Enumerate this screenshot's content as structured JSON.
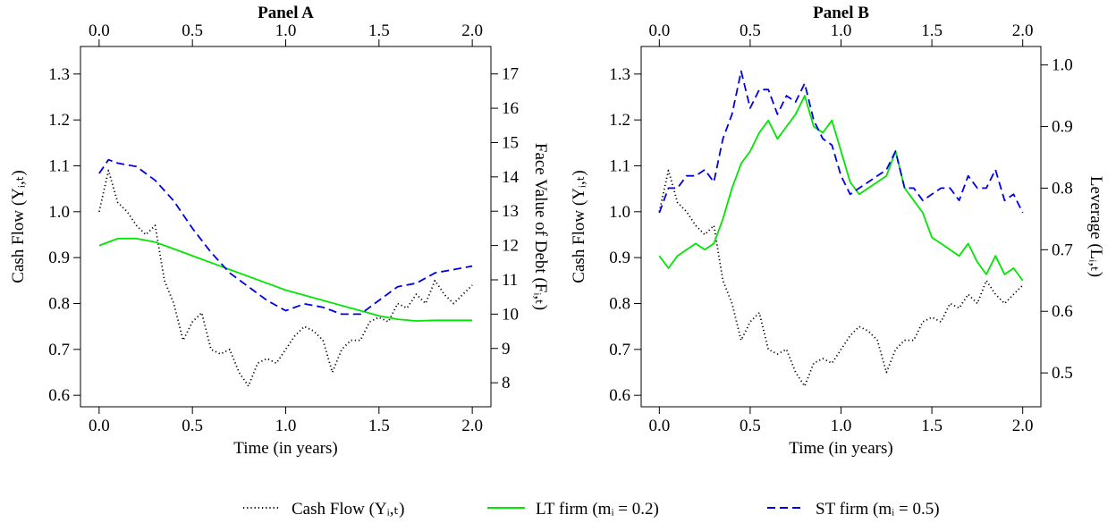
{
  "chart_data": [
    {
      "type": "line",
      "title": "Panel A",
      "xlabel": "Time (in years)",
      "ylabel_left": "Cash Flow (Yᵢ,ₜ)",
      "ylabel_right": "Face Value of Debt (Fᵢ,ₜ)",
      "xlim": [
        0,
        2
      ],
      "ylim_left": [
        0.6,
        1.3
      ],
      "ylim_right": [
        8,
        17
      ],
      "x_ticks": [
        "0.0",
        "0.5",
        "1.0",
        "1.5",
        "2.0"
      ],
      "y_left_ticks": [
        "0.6",
        "0.7",
        "0.8",
        "0.9",
        "1.0",
        "1.1",
        "1.2",
        "1.3"
      ],
      "y_right_ticks": [
        "8",
        "9",
        "10",
        "11",
        "12",
        "13",
        "14",
        "15",
        "16",
        "17"
      ],
      "series": [
        {
          "name": "Cash Flow (Yᵢ,ₜ)",
          "axis": "left",
          "color": "#000000",
          "style": "dotted",
          "x": [
            0,
            0.05,
            0.1,
            0.15,
            0.2,
            0.25,
            0.3,
            0.35,
            0.4,
            0.45,
            0.5,
            0.55,
            0.6,
            0.65,
            0.7,
            0.75,
            0.8,
            0.85,
            0.9,
            0.95,
            1.0,
            1.05,
            1.1,
            1.15,
            1.2,
            1.25,
            1.3,
            1.35,
            1.4,
            1.45,
            1.5,
            1.55,
            1.6,
            1.65,
            1.7,
            1.75,
            1.8,
            1.85,
            1.9,
            1.95,
            2.0
          ],
          "y": [
            1.0,
            1.09,
            1.02,
            1.0,
            0.97,
            0.95,
            0.97,
            0.85,
            0.8,
            0.72,
            0.76,
            0.78,
            0.7,
            0.69,
            0.7,
            0.65,
            0.62,
            0.67,
            0.68,
            0.67,
            0.7,
            0.73,
            0.75,
            0.74,
            0.72,
            0.65,
            0.7,
            0.72,
            0.72,
            0.76,
            0.77,
            0.76,
            0.8,
            0.79,
            0.82,
            0.8,
            0.85,
            0.82,
            0.8,
            0.82,
            0.84
          ]
        },
        {
          "name": "LT firm (mᵢ = 0.2)",
          "axis": "right",
          "color": "#00e600",
          "style": "solid",
          "x": [
            0,
            0.1,
            0.2,
            0.3,
            0.4,
            0.5,
            0.6,
            0.7,
            0.8,
            0.9,
            1.0,
            1.1,
            1.2,
            1.3,
            1.4,
            1.5,
            1.6,
            1.7,
            1.8,
            1.9,
            2.0
          ],
          "y": [
            12.0,
            12.2,
            12.2,
            12.1,
            11.9,
            11.7,
            11.5,
            11.3,
            11.1,
            10.9,
            10.7,
            10.55,
            10.4,
            10.25,
            10.1,
            9.95,
            9.85,
            9.8,
            9.82,
            9.82,
            9.82
          ]
        },
        {
          "name": "ST firm (mᵢ = 0.5)",
          "axis": "right",
          "color": "#0000e6",
          "style": "dashed",
          "x": [
            0,
            0.05,
            0.1,
            0.2,
            0.3,
            0.4,
            0.5,
            0.6,
            0.7,
            0.8,
            0.9,
            1.0,
            1.1,
            1.2,
            1.3,
            1.4,
            1.5,
            1.6,
            1.7,
            1.8,
            1.9,
            2.0
          ],
          "y": [
            14.1,
            14.5,
            14.4,
            14.3,
            13.9,
            13.3,
            12.5,
            11.8,
            11.2,
            10.8,
            10.4,
            10.1,
            10.3,
            10.2,
            10.0,
            10.0,
            10.4,
            10.8,
            10.9,
            11.2,
            11.3,
            11.4
          ]
        }
      ]
    },
    {
      "type": "line",
      "title": "Panel B",
      "xlabel": "Time (in years)",
      "ylabel_left": "Cash Flow (Yᵢ,ₜ)",
      "ylabel_right": "Leverage (Lᵢ,ₜ)",
      "xlim": [
        0,
        2
      ],
      "ylim_left": [
        0.6,
        1.3
      ],
      "ylim_right": [
        0.5,
        1.0
      ],
      "x_ticks": [
        "0.0",
        "0.5",
        "1.0",
        "1.5",
        "2.0"
      ],
      "y_left_ticks": [
        "0.6",
        "0.7",
        "0.8",
        "0.9",
        "1.0",
        "1.1",
        "1.2",
        "1.3"
      ],
      "y_right_ticks": [
        "0.5",
        "0.6",
        "0.7",
        "0.8",
        "0.9",
        "1.0"
      ],
      "series": [
        {
          "name": "Cash Flow (Yᵢ,ₜ)",
          "axis": "left",
          "color": "#000000",
          "style": "dotted",
          "x": [
            0,
            0.05,
            0.1,
            0.15,
            0.2,
            0.25,
            0.3,
            0.35,
            0.4,
            0.45,
            0.5,
            0.55,
            0.6,
            0.65,
            0.7,
            0.75,
            0.8,
            0.85,
            0.9,
            0.95,
            1.0,
            1.05,
            1.1,
            1.15,
            1.2,
            1.25,
            1.3,
            1.35,
            1.4,
            1.45,
            1.5,
            1.55,
            1.6,
            1.65,
            1.7,
            1.75,
            1.8,
            1.85,
            1.9,
            1.95,
            2.0
          ],
          "y": [
            1.0,
            1.09,
            1.02,
            1.0,
            0.97,
            0.95,
            0.97,
            0.85,
            0.8,
            0.72,
            0.76,
            0.78,
            0.7,
            0.69,
            0.7,
            0.65,
            0.62,
            0.67,
            0.68,
            0.67,
            0.7,
            0.73,
            0.75,
            0.74,
            0.72,
            0.65,
            0.7,
            0.72,
            0.72,
            0.76,
            0.77,
            0.76,
            0.8,
            0.79,
            0.82,
            0.8,
            0.85,
            0.82,
            0.8,
            0.82,
            0.84
          ]
        },
        {
          "name": "LT firm (mᵢ = 0.2)",
          "axis": "right",
          "color": "#00e600",
          "style": "solid",
          "x": [
            0,
            0.05,
            0.1,
            0.15,
            0.2,
            0.25,
            0.3,
            0.35,
            0.4,
            0.45,
            0.5,
            0.55,
            0.6,
            0.65,
            0.7,
            0.75,
            0.8,
            0.85,
            0.9,
            0.95,
            1.0,
            1.05,
            1.1,
            1.15,
            1.2,
            1.25,
            1.3,
            1.35,
            1.4,
            1.45,
            1.5,
            1.55,
            1.6,
            1.65,
            1.7,
            1.75,
            1.8,
            1.85,
            1.9,
            1.95,
            2.0
          ],
          "y": [
            0.69,
            0.67,
            0.69,
            0.7,
            0.71,
            0.7,
            0.71,
            0.75,
            0.8,
            0.84,
            0.86,
            0.89,
            0.91,
            0.88,
            0.9,
            0.92,
            0.95,
            0.9,
            0.89,
            0.91,
            0.86,
            0.81,
            0.79,
            0.8,
            0.81,
            0.82,
            0.86,
            0.8,
            0.78,
            0.76,
            0.72,
            0.71,
            0.7,
            0.69,
            0.71,
            0.68,
            0.66,
            0.69,
            0.66,
            0.67,
            0.65
          ]
        },
        {
          "name": "ST firm (mᵢ = 0.5)",
          "axis": "right",
          "color": "#0000e6",
          "style": "dashed",
          "x": [
            0,
            0.05,
            0.1,
            0.15,
            0.2,
            0.25,
            0.3,
            0.35,
            0.4,
            0.45,
            0.5,
            0.55,
            0.6,
            0.65,
            0.7,
            0.75,
            0.8,
            0.85,
            0.9,
            0.95,
            1.0,
            1.05,
            1.1,
            1.15,
            1.2,
            1.25,
            1.3,
            1.35,
            1.4,
            1.45,
            1.5,
            1.55,
            1.6,
            1.65,
            1.7,
            1.75,
            1.8,
            1.85,
            1.9,
            1.95,
            2.0
          ],
          "y": [
            0.76,
            0.8,
            0.8,
            0.82,
            0.82,
            0.83,
            0.81,
            0.88,
            0.92,
            0.99,
            0.93,
            0.96,
            0.96,
            0.92,
            0.95,
            0.94,
            0.97,
            0.91,
            0.88,
            0.87,
            0.82,
            0.79,
            0.8,
            0.81,
            0.82,
            0.83,
            0.86,
            0.8,
            0.8,
            0.78,
            0.79,
            0.8,
            0.8,
            0.78,
            0.82,
            0.8,
            0.8,
            0.83,
            0.78,
            0.79,
            0.76
          ]
        }
      ]
    }
  ],
  "legend": {
    "items": [
      {
        "label": "Cash Flow (Yᵢ,ₜ)",
        "color": "#000000",
        "style": "dotted"
      },
      {
        "label": "LT firm (mᵢ = 0.2)",
        "color": "#00e600",
        "style": "solid"
      },
      {
        "label": "ST firm (mᵢ = 0.5)",
        "color": "#0000e6",
        "style": "dashed"
      }
    ]
  }
}
